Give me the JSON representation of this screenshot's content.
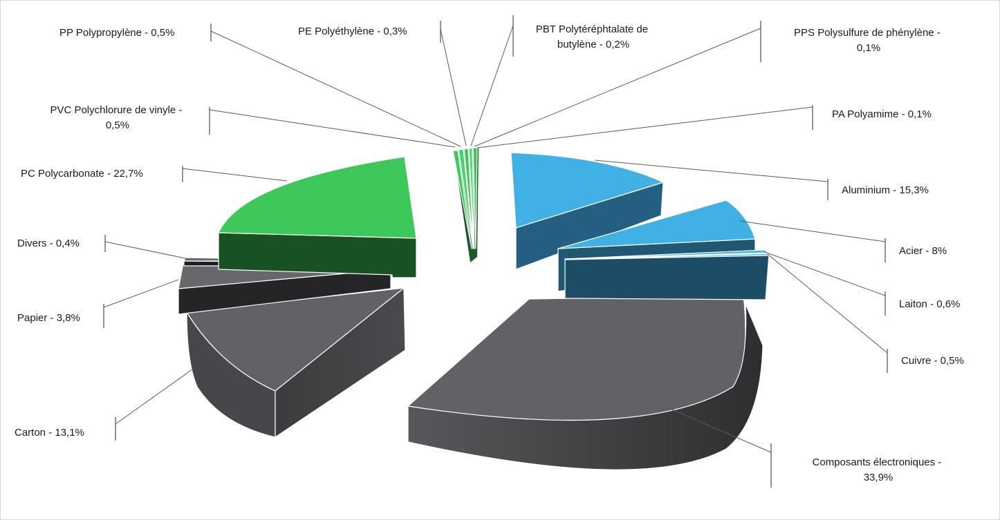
{
  "chart_data": {
    "type": "pie",
    "title": "",
    "style": "3D exploded pie",
    "slices": [
      {
        "label": "Composants électroniques",
        "value": 33.9,
        "display": "Composants électroniques - 33,9%",
        "color": "#5f5f63"
      },
      {
        "label": "Carton",
        "value": 13.1,
        "display": "Carton - 13,1%",
        "color": "#5f5f63"
      },
      {
        "label": "Papier",
        "value": 3.8,
        "display": "Papier - 3,8%",
        "color": "#5f5f63"
      },
      {
        "label": "Divers",
        "value": 0.4,
        "display": "Divers - 0,4%",
        "color": "#5f5f63"
      },
      {
        "label": "PC Polycarbonate",
        "value": 22.7,
        "display": "PC Polycarbonate - 22,7%",
        "color": "#3ec85a"
      },
      {
        "label": "PVC Polychlorure de vinyle",
        "value": 0.5,
        "display": "PVC Polychlorure de vinyle - 0,5%",
        "color": "#3ec85a"
      },
      {
        "label": "PP Polypropylène",
        "value": 0.5,
        "display": "PP Polypropylène - 0,5%",
        "color": "#3ec85a"
      },
      {
        "label": "PE Polyéthylène",
        "value": 0.3,
        "display": "PE Polyéthylène - 0,3%",
        "color": "#3ec85a"
      },
      {
        "label": "PBT Polytéréphtalate de butylène",
        "value": 0.2,
        "display": "PBT Polytéréphtalate de butylène - 0,2%",
        "color": "#3ec85a"
      },
      {
        "label": "PPS Polysulfure de phénylène",
        "value": 0.1,
        "display": "PPS Polysulfure de phénylène - 0,1%",
        "color": "#3ec85a"
      },
      {
        "label": "PA Polyamime",
        "value": 0.1,
        "display": "PA Polyamime - 0,1%",
        "color": "#3ec85a"
      },
      {
        "label": "Aluminium",
        "value": 15.3,
        "display": "Aluminium - 15,3%",
        "color": "#41b0e4"
      },
      {
        "label": "Acier",
        "value": 8,
        "display": "Acier - 8%",
        "color": "#41b0e4"
      },
      {
        "label": "Laiton",
        "value": 0.6,
        "display": "Laiton - 0,6%",
        "color": "#41b0e4"
      },
      {
        "label": "Cuivre",
        "value": 0.5,
        "display": "Cuivre - 0,5%",
        "color": "#41b0e4"
      }
    ],
    "labels": {
      "composants": [
        "Composants électroniques -",
        "33,9%"
      ],
      "carton": [
        "Carton - 13,1%"
      ],
      "papier": [
        "Papier - 3,8%"
      ],
      "divers": [
        "Divers - 0,4%"
      ],
      "pc": [
        "PC Polycarbonate - 22,7%"
      ],
      "pvc": [
        "PVC Polychlorure de vinyle -",
        "0,5%"
      ],
      "pp": [
        "PP Polypropylène - 0,5%"
      ],
      "pe": [
        "PE Polyéthylène - 0,3%"
      ],
      "pbt": [
        "PBT Polytéréphtalate de",
        "butylène - 0,2%"
      ],
      "pps": [
        "PPS Polysulfure de phénylène -",
        "0,1%"
      ],
      "pa": [
        "PA Polyamime - 0,1%"
      ],
      "aluminium": [
        "Aluminium - 15,3%"
      ],
      "acier": [
        "Acier - 8%"
      ],
      "laiton": [
        "Laiton - 0,6%"
      ],
      "cuivre": [
        "Cuivre - 0,5%"
      ]
    }
  }
}
